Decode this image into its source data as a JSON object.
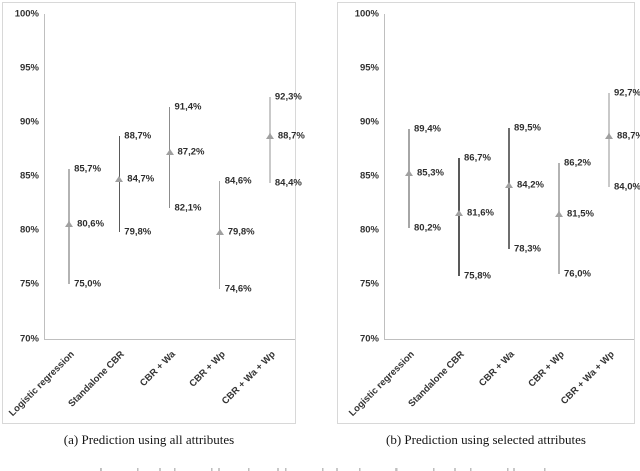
{
  "style": {
    "panel_border": "#d8d8d8",
    "axis_color": "#bfbfbf",
    "marker_color": "#a0a0a0",
    "value_label_color": "#2e2e2e",
    "tick_label_color": "#323232",
    "caption_color": "#151515",
    "background": "#ffffff"
  },
  "chart_data": [
    {
      "type": "scatter",
      "subtype": "high-low-range",
      "title": "(a) Prediction using all attributes",
      "categories": [
        "Logistic regression",
        "Standalone CBR",
        "CBR + Wa",
        "CBR + Wp",
        "CBR + Wa + Wp"
      ],
      "series": [
        {
          "name": "high",
          "values": [
            85.7,
            88.7,
            91.4,
            84.6,
            92.3
          ],
          "labels": [
            "85,7%",
            "88,7%",
            "91,4%",
            "84,6%",
            "92,3%"
          ]
        },
        {
          "name": "marker",
          "values": [
            80.6,
            84.7,
            87.2,
            79.8,
            88.7
          ],
          "labels": [
            "80,6%",
            "84,7%",
            "87,2%",
            "79,8%",
            "88,7%"
          ]
        },
        {
          "name": "low",
          "values": [
            75.0,
            79.8,
            82.1,
            74.6,
            84.4
          ],
          "labels": [
            "75,0%",
            "79,8%",
            "82,1%",
            "74,6%",
            "84,4%"
          ]
        }
      ],
      "ylim": [
        70,
        100
      ],
      "ytick_labels": [
        "100%",
        "95%",
        "90%",
        "85%",
        "80%",
        "75%",
        "70%"
      ],
      "grid": false,
      "legend": "none",
      "line_colors": [
        "#b3b3b3",
        "#595959",
        "#8c8c8c",
        "#a9a9a9",
        "#c9c9c9"
      ]
    },
    {
      "type": "scatter",
      "subtype": "high-low-range",
      "title": "(b) Prediction using selected attributes",
      "categories": [
        "Logistic regression",
        "Standalone CBR",
        "CBR + Wa",
        "CBR + Wp",
        "CBR + Wa + Wp"
      ],
      "series": [
        {
          "name": "high",
          "values": [
            89.4,
            86.7,
            89.5,
            86.2,
            92.7
          ],
          "labels": [
            "89,4%",
            "86,7%",
            "89,5%",
            "86,2%",
            "92,7%"
          ]
        },
        {
          "name": "marker",
          "values": [
            85.3,
            81.6,
            84.2,
            81.5,
            88.7
          ],
          "labels": [
            "85,3%",
            "81,6%",
            "84,2%",
            "81,5%",
            "88,7%"
          ]
        },
        {
          "name": "low",
          "values": [
            80.2,
            75.8,
            78.3,
            76.0,
            84.0
          ],
          "labels": [
            "80,2%",
            "75,8%",
            "78,3%",
            "76,0%",
            "84,0%"
          ]
        }
      ],
      "ylim": [
        70,
        100
      ],
      "ytick_labels": [
        "100%",
        "95%",
        "90%",
        "85%",
        "80%",
        "75%",
        "70%"
      ],
      "grid": false,
      "legend": "none",
      "line_colors": [
        "#a6a6a6",
        "#595959",
        "#6e6e6e",
        "#b3b3b3",
        "#c9c9c9"
      ]
    }
  ]
}
